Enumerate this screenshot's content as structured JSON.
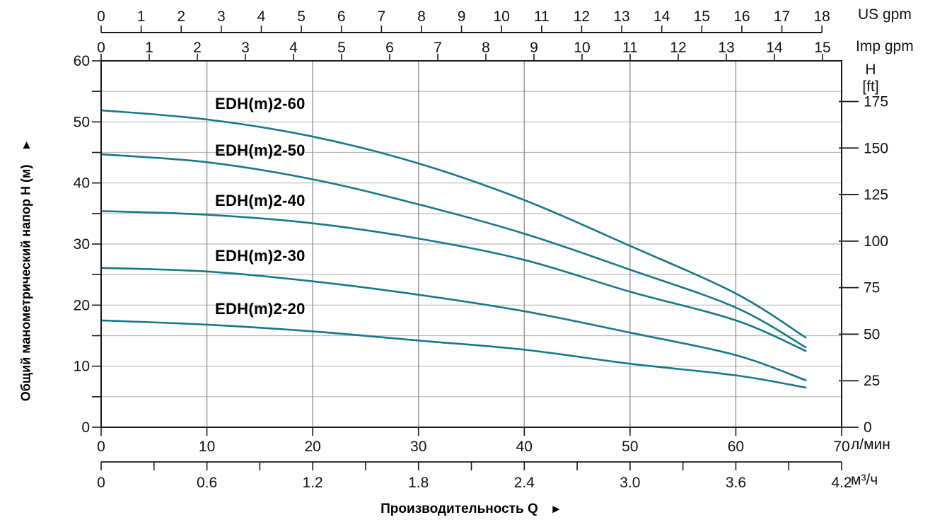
{
  "chart": {
    "x_us_gpm": {
      "unit": "US gpm",
      "ticks": [
        0,
        1,
        2,
        3,
        4,
        5,
        6,
        7,
        8,
        9,
        10,
        11,
        12,
        13,
        14,
        15,
        16,
        17,
        18
      ]
    },
    "x_imp_gpm": {
      "unit": "Imp gpm",
      "ticks": [
        0,
        1,
        2,
        3,
        4,
        5,
        6,
        7,
        8,
        9,
        10,
        11,
        12,
        13,
        14,
        15
      ]
    },
    "x_l_min": {
      "unit": "л/мин",
      "ticks": [
        0,
        10,
        20,
        30,
        40,
        50,
        60,
        70
      ]
    },
    "x_m3_h": {
      "unit": "м³/ч",
      "tick_labels": [
        "0",
        "0.6",
        "1.2",
        "1.8",
        "2.4",
        "3.0",
        "3.6",
        "4.2"
      ],
      "minor_step": 0.3,
      "max": 4.2
    },
    "y_left": {
      "title": "Общий манометрический напор H (м)",
      "arrow": "▲",
      "ticks": [
        0,
        10,
        20,
        30,
        40,
        50,
        60
      ],
      "minor_step": 5
    },
    "y_right": {
      "title_line1": "H",
      "title_line2": "[ft]",
      "ticks": [
        0,
        25,
        50,
        75,
        100,
        125,
        150,
        175
      ]
    },
    "x_title": "Производительность Q",
    "x_title_arrow": "►"
  },
  "chart_data": {
    "type": "line",
    "title": "",
    "xlabel": "Производительность Q",
    "ylabel_left": "Общий манометрический напор H (м)",
    "ylabel_right": "H [ft]",
    "x_units": [
      "US gpm",
      "Imp gpm",
      "л/мин",
      "м³/ч"
    ],
    "point_units": {
      "x": "л/мин",
      "y": "м"
    },
    "xlim_l_min": [
      0,
      70
    ],
    "ylim_m": [
      0,
      60
    ],
    "ylim_ft": [
      0,
      175
    ],
    "grid": true,
    "series": [
      {
        "name": "EDH(m)2-60",
        "points": [
          [
            0,
            51.9
          ],
          [
            10,
            50.4
          ],
          [
            20,
            47.6
          ],
          [
            30,
            43.2
          ],
          [
            40,
            37.2
          ],
          [
            50,
            29.7
          ],
          [
            60,
            21.9
          ],
          [
            66.6,
            14.7
          ]
        ]
      },
      {
        "name": "EDH(m)2-50",
        "points": [
          [
            0,
            44.7
          ],
          [
            10,
            43.4
          ],
          [
            20,
            40.6
          ],
          [
            30,
            36.5
          ],
          [
            40,
            31.7
          ],
          [
            50,
            25.8
          ],
          [
            60,
            19.6
          ],
          [
            66.6,
            13.1
          ]
        ]
      },
      {
        "name": "EDH(m)2-40",
        "points": [
          [
            0,
            35.4
          ],
          [
            10,
            34.8
          ],
          [
            20,
            33.4
          ],
          [
            30,
            30.9
          ],
          [
            40,
            27.4
          ],
          [
            50,
            22.2
          ],
          [
            60,
            17.5
          ],
          [
            66.6,
            12.5
          ]
        ]
      },
      {
        "name": "EDH(m)2-30",
        "points": [
          [
            0,
            26.1
          ],
          [
            10,
            25.5
          ],
          [
            20,
            23.9
          ],
          [
            30,
            21.7
          ],
          [
            40,
            19.0
          ],
          [
            50,
            15.5
          ],
          [
            60,
            11.8
          ],
          [
            66.6,
            7.7
          ]
        ]
      },
      {
        "name": "EDH(m)2-20",
        "points": [
          [
            0,
            17.5
          ],
          [
            10,
            16.8
          ],
          [
            20,
            15.7
          ],
          [
            30,
            14.2
          ],
          [
            40,
            12.7
          ],
          [
            50,
            10.4
          ],
          [
            60,
            8.5
          ],
          [
            66.6,
            6.5
          ]
        ]
      }
    ]
  },
  "colors": {
    "curve": "#17788c",
    "grid_horizontal": "#b9b9b9",
    "grid_vertical": "#8e8e8e",
    "axis": "#1a1a1a",
    "text": "#111111"
  }
}
